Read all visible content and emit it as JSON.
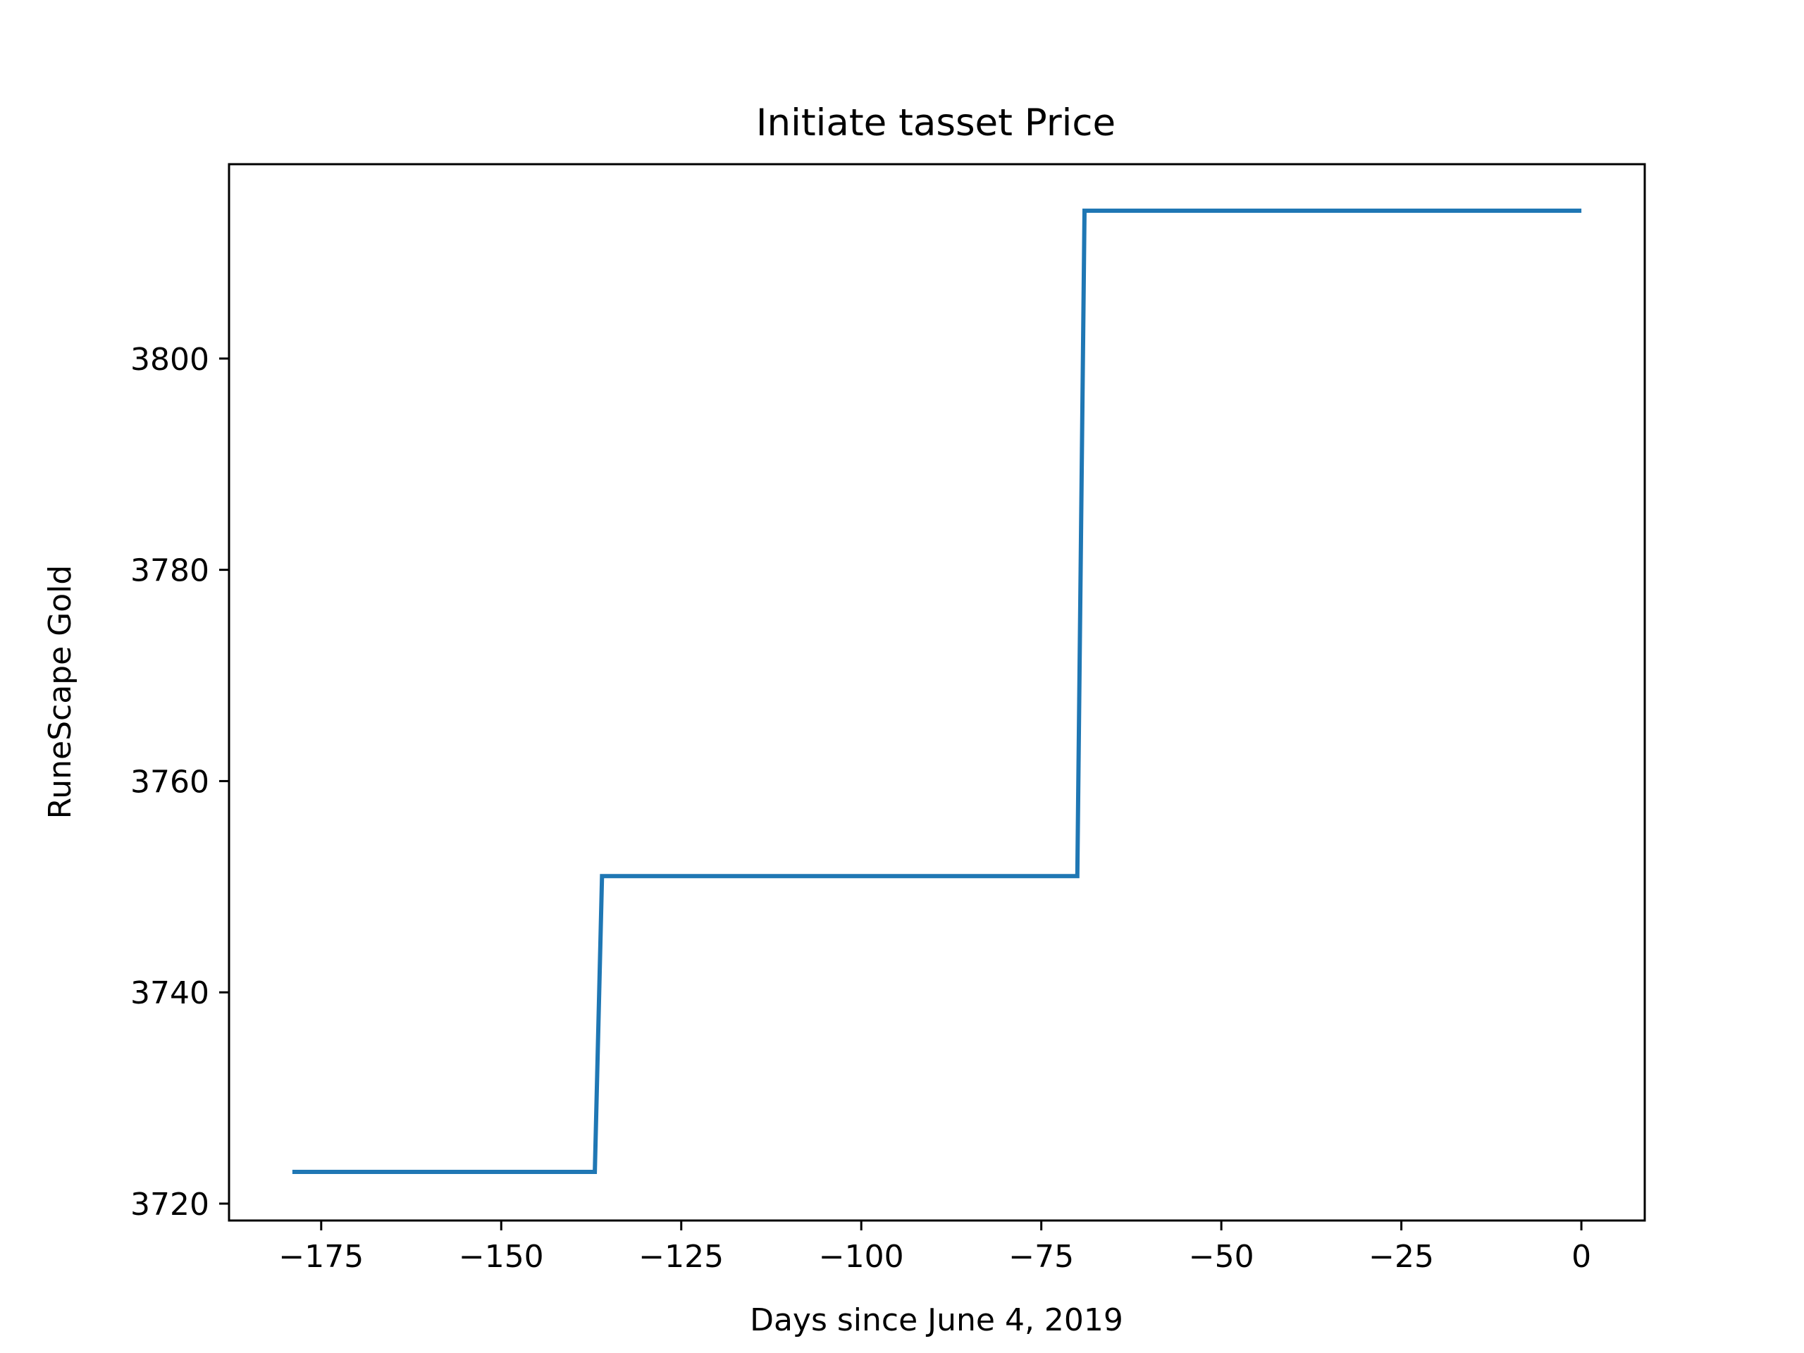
{
  "chart_data": {
    "type": "line",
    "step": true,
    "title": "Initiate tasset Price",
    "xlabel": "Days since June 4, 2019",
    "ylabel": "RuneScape Gold",
    "xlim": [
      -187.8,
      8.8
    ],
    "ylim": [
      3718.4,
      3818.4
    ],
    "xticks": [
      -175,
      -150,
      -125,
      -100,
      -75,
      -50,
      -25,
      0
    ],
    "xtick_labels": [
      "−175",
      "−150",
      "−125",
      "−100",
      "−75",
      "−50",
      "−25",
      "0"
    ],
    "yticks": [
      3720,
      3740,
      3760,
      3780,
      3800
    ],
    "ytick_labels": [
      "3720",
      "3740",
      "3760",
      "3780",
      "3800"
    ],
    "grid": false,
    "series": [
      {
        "color": "#1f77b4",
        "x": [
          -179,
          -137,
          -136,
          -70,
          -69,
          0
        ],
        "y": [
          3723,
          3723,
          3751,
          3751,
          3814,
          3814
        ]
      }
    ]
  }
}
